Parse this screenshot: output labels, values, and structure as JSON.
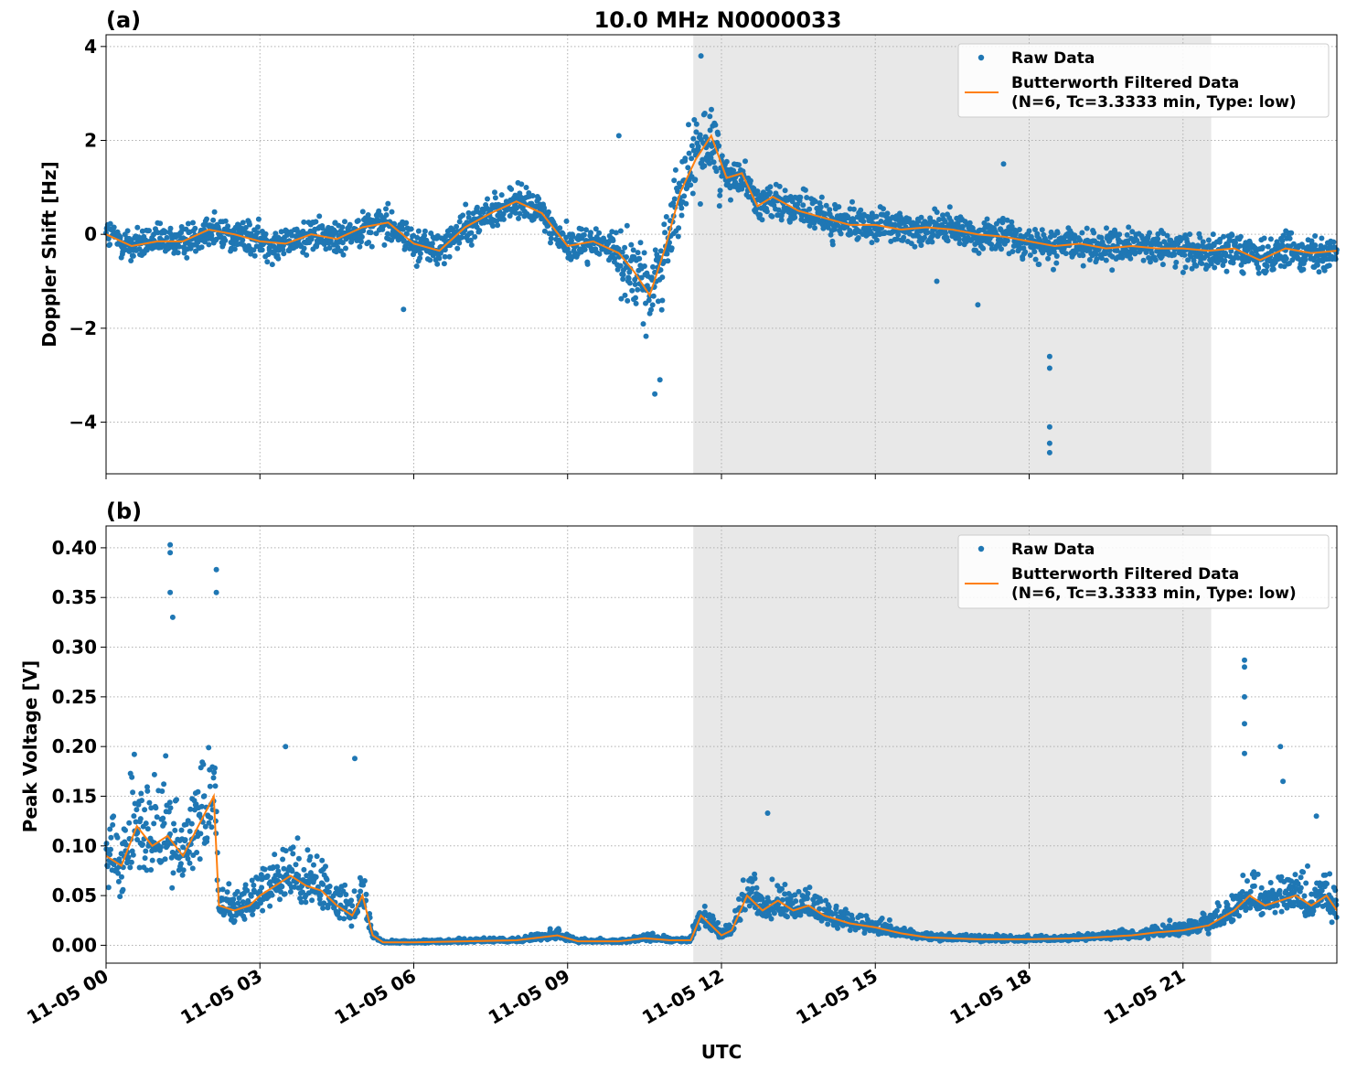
{
  "figure": {
    "title": "10.0 MHz N0000033",
    "xlabel": "UTC",
    "x_tick_labels": [
      "11-05 00",
      "11-05 03",
      "11-05 06",
      "11-05 09",
      "11-05 12",
      "11-05 15",
      "11-05 18",
      "11-05 21"
    ],
    "shaded_region_hours": [
      11.45,
      21.55
    ],
    "legend": {
      "raw_label": "Raw Data",
      "filtered_label_line1": "Butterworth Filtered Data",
      "filtered_label_line2": "(N=6, Tc=3.3333 min, Type: low)"
    },
    "colors": {
      "raw": "#1f77b4",
      "filtered": "#ff7f0e",
      "shade": "#e8e8e8",
      "grid": "#b0b0b0"
    }
  },
  "chart_data": [
    {
      "type": "scatter",
      "panel_label": "(a)",
      "title": "10.0 MHz N0000033",
      "xlabel": "UTC",
      "ylabel": "Doppler Shift [Hz]",
      "x_unit": "hours since 11-05 00:00 UTC",
      "xlim": [
        0,
        24
      ],
      "ylim": [
        -5.1,
        4.25
      ],
      "yticks": [
        -4,
        -2,
        0,
        2,
        4
      ],
      "ytick_labels": [
        "−4",
        "−2",
        "0",
        "2",
        "4"
      ],
      "grid": true,
      "legend_position": "upper right",
      "series": [
        {
          "name": "Butterworth Filtered Data",
          "kind": "line",
          "x": [
            0,
            0.5,
            1,
            1.5,
            2,
            2.5,
            3,
            3.5,
            4,
            4.5,
            5,
            5.5,
            6,
            6.5,
            7,
            7.5,
            8,
            8.5,
            9,
            9.5,
            10,
            10.3,
            10.6,
            10.9,
            11.2,
            11.5,
            11.8,
            12.1,
            12.4,
            12.7,
            13,
            13.5,
            14,
            14.5,
            15,
            15.5,
            16,
            16.5,
            17,
            17.5,
            18,
            18.5,
            19,
            19.5,
            20,
            20.5,
            21,
            21.5,
            22,
            22.5,
            23,
            23.5,
            24
          ],
          "y": [
            0,
            -0.25,
            -0.15,
            -0.15,
            0.1,
            0,
            -0.15,
            -0.2,
            0,
            -0.1,
            0.15,
            0.25,
            -0.2,
            -0.35,
            0.15,
            0.45,
            0.7,
            0.45,
            -0.25,
            -0.15,
            -0.4,
            -0.8,
            -1.3,
            -0.3,
            0.9,
            1.6,
            2.1,
            1.2,
            1.3,
            0.6,
            0.8,
            0.5,
            0.35,
            0.2,
            0.2,
            0.1,
            0.15,
            0.1,
            0,
            -0.05,
            -0.15,
            -0.25,
            -0.2,
            -0.3,
            -0.25,
            -0.3,
            -0.3,
            -0.35,
            -0.3,
            -0.55,
            -0.3,
            -0.4,
            -0.35
          ]
        },
        {
          "name": "Raw Data",
          "kind": "points",
          "spread": 0.35,
          "outliers": [
            [
              10.7,
              -3.4
            ],
            [
              10.8,
              -3.1
            ],
            [
              11.6,
              3.8
            ],
            [
              12.3,
              1.0
            ],
            [
              16.2,
              -1.0
            ],
            [
              17.0,
              -1.5
            ],
            [
              18.4,
              -2.6
            ],
            [
              18.4,
              -2.85
            ],
            [
              18.4,
              -4.1
            ],
            [
              18.4,
              -4.45
            ],
            [
              18.4,
              -4.65
            ],
            [
              17.5,
              1.5
            ],
            [
              10.0,
              2.1
            ],
            [
              5.8,
              -1.6
            ]
          ]
        }
      ]
    },
    {
      "type": "scatter",
      "panel_label": "(b)",
      "xlabel": "UTC",
      "ylabel": "Peak Voltage [V]",
      "x_unit": "hours since 11-05 00:00 UTC",
      "xlim": [
        0,
        24
      ],
      "ylim": [
        -0.018,
        0.422
      ],
      "yticks": [
        0,
        0.05,
        0.1,
        0.15,
        0.2,
        0.25,
        0.3,
        0.35,
        0.4
      ],
      "ytick_labels": [
        "0.00",
        "0.05",
        "0.10",
        "0.15",
        "0.20",
        "0.25",
        "0.30",
        "0.35",
        "0.40"
      ],
      "grid": true,
      "legend_position": "upper right",
      "series": [
        {
          "name": "Butterworth Filtered Data",
          "kind": "line",
          "x": [
            0,
            0.3,
            0.6,
            0.9,
            1.2,
            1.5,
            1.8,
            2.1,
            2.2,
            2.5,
            2.8,
            3.0,
            3.3,
            3.6,
            3.9,
            4.2,
            4.5,
            4.8,
            5.0,
            5.2,
            5.4,
            6,
            7,
            8,
            8.8,
            9.2,
            10,
            10.5,
            11,
            11.4,
            11.6,
            11.8,
            12.0,
            12.2,
            12.5,
            12.8,
            13.1,
            13.4,
            13.7,
            14,
            14.5,
            15,
            15.5,
            16,
            17,
            18,
            19,
            20,
            20.5,
            21,
            21.5,
            22,
            22.3,
            22.6,
            22.9,
            23.2,
            23.5,
            23.8,
            24
          ],
          "y": [
            0.09,
            0.08,
            0.12,
            0.1,
            0.11,
            0.09,
            0.12,
            0.15,
            0.04,
            0.035,
            0.04,
            0.05,
            0.06,
            0.07,
            0.06,
            0.055,
            0.04,
            0.03,
            0.05,
            0.01,
            0.003,
            0.003,
            0.004,
            0.005,
            0.01,
            0.004,
            0.004,
            0.007,
            0.005,
            0.005,
            0.03,
            0.02,
            0.01,
            0.015,
            0.05,
            0.035,
            0.045,
            0.035,
            0.04,
            0.03,
            0.022,
            0.018,
            0.012,
            0.008,
            0.006,
            0.006,
            0.007,
            0.01,
            0.013,
            0.015,
            0.02,
            0.035,
            0.05,
            0.04,
            0.045,
            0.05,
            0.04,
            0.05,
            0.035
          ]
        },
        {
          "name": "Raw Data",
          "kind": "points",
          "spread": 0.6,
          "outliers": [
            [
              1.25,
              0.403
            ],
            [
              1.25,
              0.395
            ],
            [
              1.25,
              0.355
            ],
            [
              1.3,
              0.33
            ],
            [
              2.15,
              0.378
            ],
            [
              2.15,
              0.355
            ],
            [
              3.5,
              0.2
            ],
            [
              4.85,
              0.188
            ],
            [
              12.9,
              0.133
            ],
            [
              22.2,
              0.287
            ],
            [
              22.2,
              0.28
            ],
            [
              22.2,
              0.25
            ],
            [
              22.2,
              0.223
            ],
            [
              22.2,
              0.193
            ],
            [
              22.9,
              0.2
            ],
            [
              22.95,
              0.165
            ],
            [
              23.6,
              0.13
            ]
          ]
        }
      ]
    }
  ]
}
